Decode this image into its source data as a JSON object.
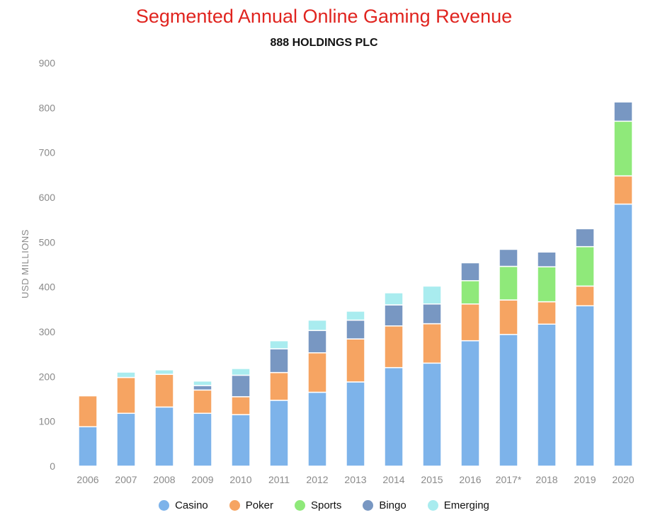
{
  "chart_data": {
    "type": "bar",
    "stacked": true,
    "title": "Segmented Annual Online Gaming Revenue",
    "subtitle": "888 HOLDINGS PLC",
    "xlabel": "",
    "ylabel": "USD MILLIONS",
    "ylim": [
      0,
      900
    ],
    "yticks": [
      0,
      100,
      200,
      300,
      400,
      500,
      600,
      700,
      800,
      900
    ],
    "grid": false,
    "legend_position": "bottom",
    "categories": [
      "2006",
      "2007",
      "2008",
      "2009",
      "2010",
      "2011",
      "2012",
      "2013",
      "2014",
      "2015",
      "2016",
      "2017*",
      "2018",
      "2019",
      "2020"
    ],
    "series": [
      {
        "name": "Casino",
        "color": "#7db3ea",
        "values": [
          88,
          118,
          132,
          118,
          115,
          147,
          165,
          188,
          220,
          230,
          280,
          294,
          317,
          358,
          585
        ]
      },
      {
        "name": "Poker",
        "color": "#f6a462",
        "values": [
          69,
          80,
          73,
          52,
          40,
          62,
          88,
          96,
          93,
          88,
          82,
          77,
          50,
          44,
          63
        ]
      },
      {
        "name": "Sports",
        "color": "#8fe97a",
        "values": [
          0,
          0,
          0,
          0,
          0,
          0,
          0,
          0,
          0,
          0,
          52,
          75,
          78,
          88,
          122
        ]
      },
      {
        "name": "Bingo",
        "color": "#7897c2",
        "values": [
          0,
          0,
          0,
          10,
          48,
          53,
          50,
          42,
          47,
          44,
          40,
          38,
          33,
          40,
          43
        ]
      },
      {
        "name": "Emerging",
        "color": "#a9ecef",
        "values": [
          0,
          12,
          10,
          10,
          15,
          18,
          23,
          20,
          27,
          40,
          0,
          0,
          0,
          0,
          0
        ]
      }
    ]
  }
}
